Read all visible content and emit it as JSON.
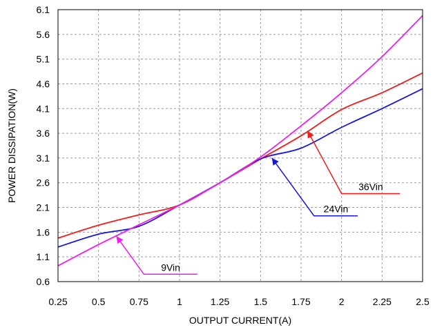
{
  "chart_data": {
    "type": "line",
    "title": "",
    "xlabel": "OUTPUT CURRENT(A)",
    "ylabel": "POWER DISSIPATION(W)",
    "xlim": [
      0.25,
      2.5
    ],
    "ylim": [
      0.6,
      6.1
    ],
    "xticks": [
      "0.25",
      "0.5",
      "0.75",
      "1",
      "1.25",
      "1.5",
      "1.75",
      "2",
      "2.25",
      "2.5"
    ],
    "yticks": [
      "0.6",
      "1.1",
      "1.6",
      "2.1",
      "2.6",
      "3.1",
      "3.6",
      "4.1",
      "4.6",
      "5.1",
      "5.6",
      "6.1"
    ],
    "grid": true,
    "legend": "none",
    "series": [
      {
        "name": "36Vin",
        "color": "#ee1c1c",
        "x": [
          0.25,
          0.5,
          0.75,
          1.0,
          1.25,
          1.5,
          1.75,
          2.0,
          2.25,
          2.5
        ],
        "y": [
          1.48,
          1.74,
          1.95,
          2.15,
          2.6,
          3.08,
          3.55,
          4.08,
          4.42,
          4.82
        ]
      },
      {
        "name": "24Vin",
        "color": "#1515dd",
        "x": [
          0.25,
          0.5,
          0.75,
          1.0,
          1.25,
          1.5,
          1.75,
          2.0,
          2.25,
          2.5
        ],
        "y": [
          1.3,
          1.56,
          1.72,
          2.15,
          2.6,
          3.08,
          3.3,
          3.72,
          4.1,
          4.5
        ]
      },
      {
        "name": "9Vin",
        "color": "#ee1cee",
        "x": [
          0.25,
          0.5,
          0.75,
          1.0,
          1.25,
          1.5,
          1.75,
          2.0,
          2.25,
          2.5
        ],
        "y": [
          0.92,
          1.35,
          1.75,
          2.15,
          2.6,
          3.12,
          3.75,
          4.42,
          5.15,
          5.98
        ]
      }
    ],
    "annotations": [
      {
        "text": "36Vin",
        "series": "36Vin",
        "color": "#ee1c1c",
        "target": [
          1.79,
          3.65
        ],
        "elbow": [
          2.0,
          2.38
        ],
        "end": [
          2.36,
          2.38
        ]
      },
      {
        "text": "24Vin",
        "series": "24Vin",
        "color": "#1515dd",
        "target": [
          1.57,
          3.1
        ],
        "elbow": [
          1.83,
          1.93
        ],
        "end": [
          2.1,
          1.93
        ]
      },
      {
        "text": "9Vin",
        "series": "9Vin",
        "color": "#ee1cee",
        "target": [
          0.61,
          1.52
        ],
        "elbow": [
          0.78,
          0.75
        ],
        "end": [
          1.11,
          0.75
        ]
      }
    ]
  }
}
